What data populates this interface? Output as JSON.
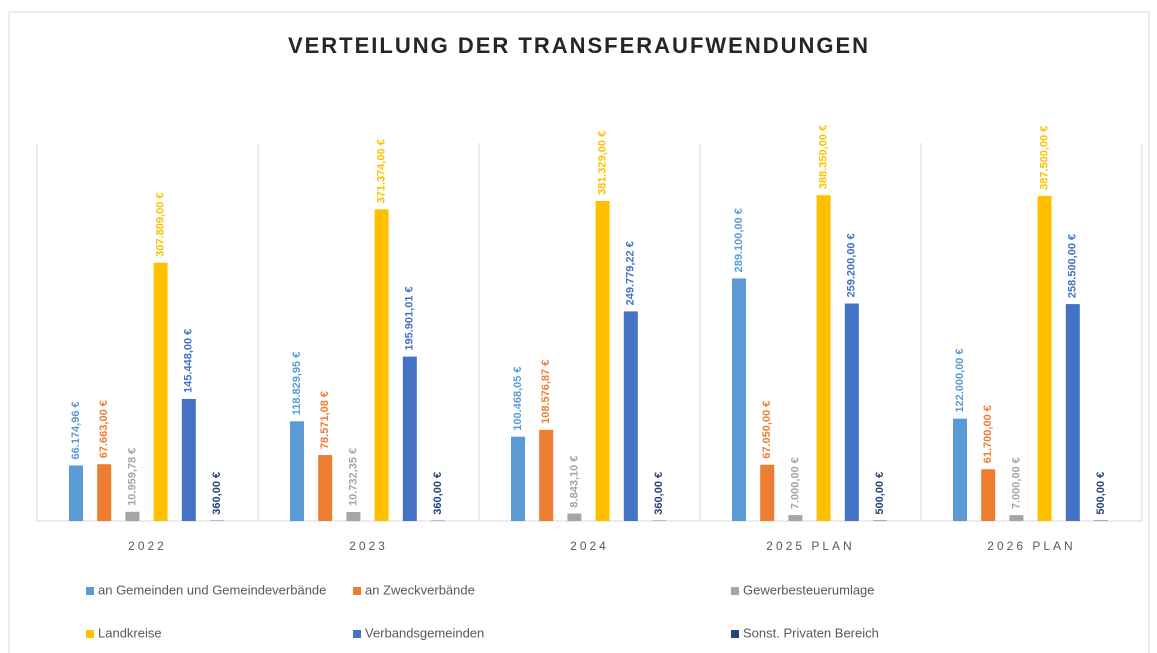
{
  "chart_data": {
    "type": "bar",
    "title": "VERTEILUNG DER TRANSFERAUFWENDUNGEN",
    "categories": [
      "2022",
      "2023",
      "2024",
      "2025 PLAN",
      "2026 PLAN"
    ],
    "ylim": [
      0,
      460000
    ],
    "series": [
      {
        "name": "an Gemeinden und Gemeindeverbände",
        "color": "#5b9bd5",
        "values": [
          66174.96,
          118829.95,
          100468.05,
          289100,
          122000
        ],
        "value_labels": [
          "66.174,96 €",
          "118.829,95 €",
          "100.468,05 €",
          "289.100,00 €",
          "122.000,00 €"
        ]
      },
      {
        "name": "an Zweckverbände",
        "color": "#ed7d31",
        "values": [
          67663,
          78571.08,
          108576.87,
          67050,
          61700
        ],
        "value_labels": [
          "67.663,00 €",
          "78.571,08 €",
          "108.576,87 €",
          "67.050,00 €",
          "61.700,00 €"
        ]
      },
      {
        "name": "Gewerbesteuerumlage",
        "color": "#a5a5a5",
        "values": [
          10959.78,
          10732.35,
          8843.1,
          7000,
          7000
        ],
        "value_labels": [
          "10.959,78 €",
          "10.732,35 €",
          "8.843,10 €",
          "7.000,00 €",
          "7.000,00 €"
        ]
      },
      {
        "name": "Landkreise",
        "color": "#ffc000",
        "values": [
          307809,
          371374,
          381329,
          388350,
          387500
        ],
        "value_labels": [
          "307.809,00 €",
          "371.374,00 €",
          "381.329,00 €",
          "388.350,00 €",
          "387.500,00 €"
        ]
      },
      {
        "name": "Verbandsgemeinden",
        "color": "#4472c4",
        "values": [
          145448,
          195901.01,
          249779.22,
          259200,
          258500
        ],
        "value_labels": [
          "145.448,00 €",
          "195.901,01 €",
          "249.779,22 €",
          "259.200,00 €",
          "258.500,00 €"
        ]
      },
      {
        "name": "Sonst. Privaten Bereich",
        "color": "#264478",
        "values": [
          360,
          360,
          360,
          500,
          500
        ],
        "value_labels": [
          "360,00 €",
          "360,00 €",
          "360,00 €",
          "500,00 €",
          "500,00 €"
        ]
      }
    ]
  }
}
